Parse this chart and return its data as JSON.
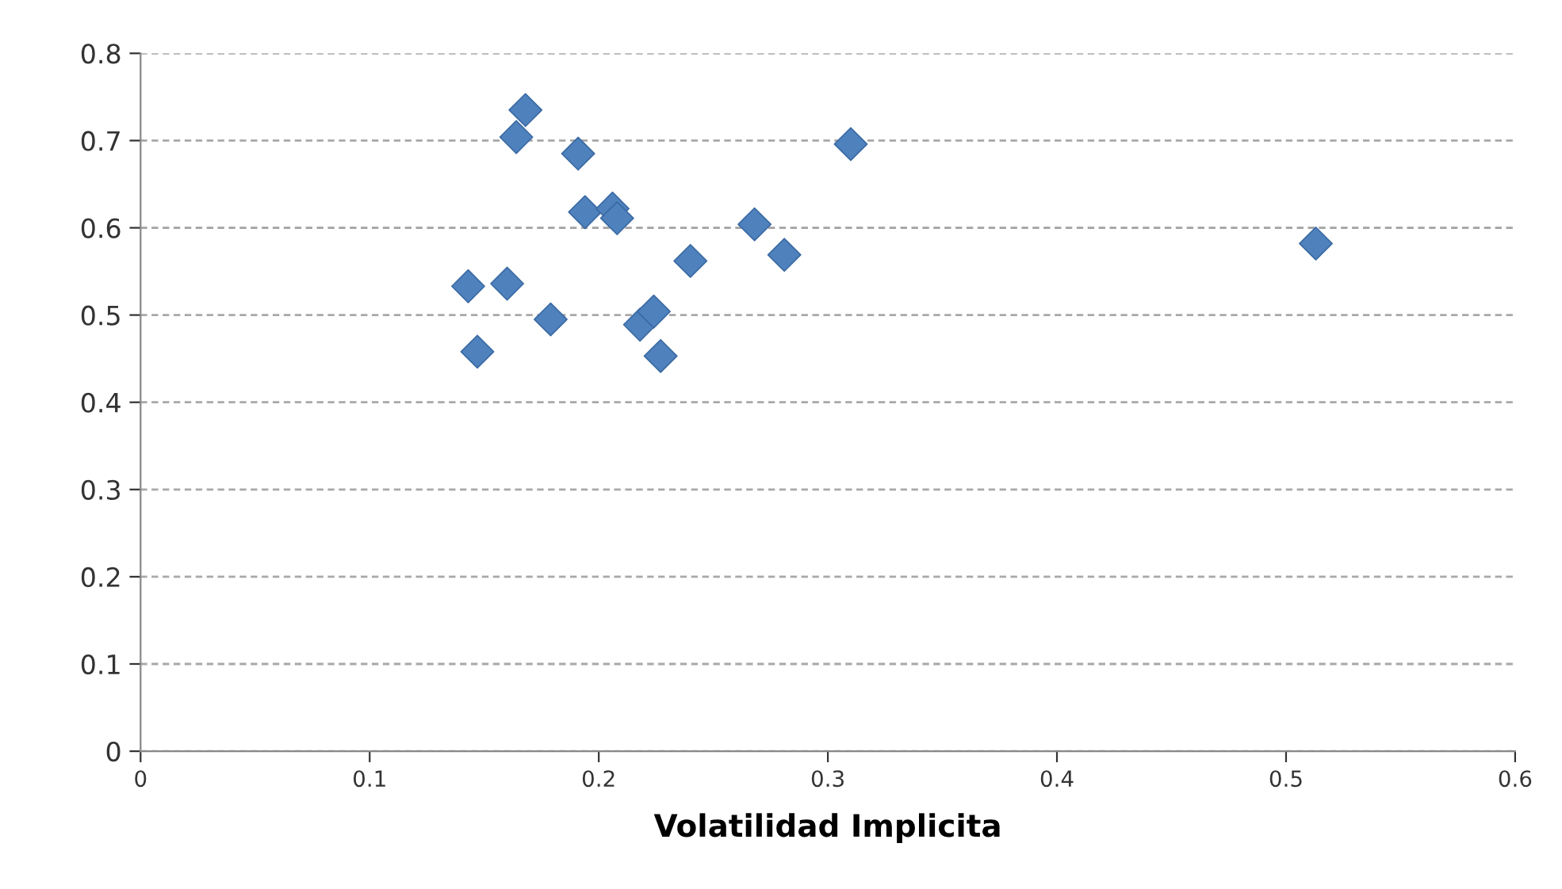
{
  "chart_data": {
    "type": "scatter",
    "xlabel": "Volatilidad Implicita",
    "x": [
      0.143,
      0.147,
      0.164,
      0.168,
      0.16,
      0.179,
      0.191,
      0.194,
      0.206,
      0.208,
      0.218,
      0.224,
      0.227,
      0.24,
      0.268,
      0.281,
      0.31,
      0.513
    ],
    "series": [
      {
        "color": "#4f81bd",
        "values": [
          0.533,
          0.458,
          0.704,
          0.735,
          0.536,
          0.495,
          0.685,
          0.618,
          0.622,
          0.611,
          0.489,
          0.504,
          0.453,
          0.562,
          0.604,
          0.569,
          0.696,
          0.582
        ]
      }
    ],
    "xlim": [
      0,
      0.6
    ],
    "xticks": [
      0,
      0.1,
      0.2,
      0.3,
      0.4,
      0.5,
      0.6
    ],
    "ylim": [
      0,
      0.8
    ],
    "yticks": [
      0,
      0.1,
      0.2,
      0.3,
      0.4,
      0.5,
      0.6,
      0.7,
      0.8
    ],
    "grid": "y",
    "marker": "diamond"
  }
}
